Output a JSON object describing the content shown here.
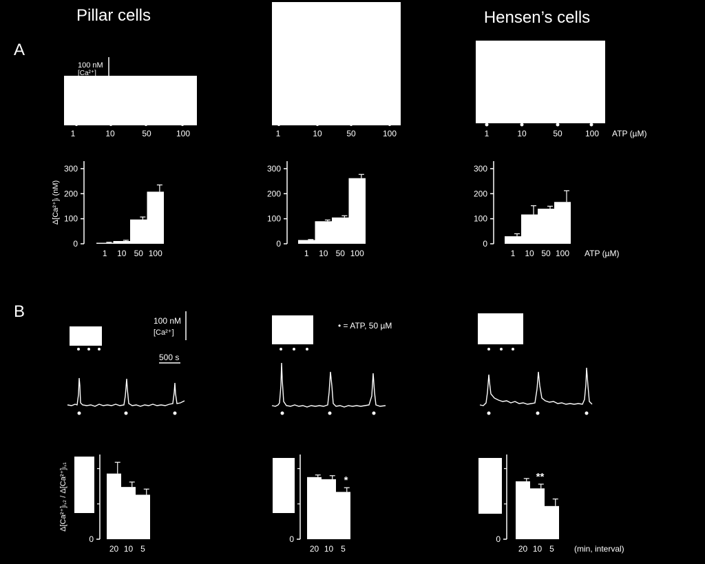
{
  "figure": {
    "headers": [
      "Pillar cells",
      "",
      "Hensen’s cells"
    ],
    "panel_a_label": "A",
    "panel_b_label": "B"
  },
  "colors": {
    "background": "#000000",
    "foreground": "#ffffff"
  },
  "panel_a": {
    "trace_doses": [
      "1",
      "10",
      "50",
      "100"
    ],
    "trace_axis_label": "ATP (µM)",
    "scale_bar": {
      "line1": "100 nM",
      "line2": "[Ca²⁺]"
    }
  },
  "panel_b": {
    "scale_bar": {
      "line1": "100 nM",
      "line2": "[Ca²⁺]",
      "time": "500 s"
    },
    "marker_legend": "• = ATP, 50 µM"
  },
  "chart_data": [
    {
      "type": "bar",
      "panel": "A",
      "group": "Pillar cells",
      "categories": [
        "1",
        "10",
        "50",
        "100"
      ],
      "values": [
        4,
        11,
        97,
        208
      ],
      "errors": [
        2,
        3,
        10,
        27
      ],
      "ylabel": "Δ[Ca²⁺]ᵢ (nM)",
      "xlabel": "",
      "yticks": [
        0,
        100,
        200,
        300
      ],
      "ylim": [
        0,
        330
      ]
    },
    {
      "type": "bar",
      "panel": "A",
      "group": "",
      "categories": [
        "1",
        "10",
        "50",
        "100"
      ],
      "values": [
        15,
        90,
        105,
        262
      ],
      "errors": [
        2,
        5,
        7,
        15
      ],
      "ylabel": "",
      "xlabel": "",
      "yticks": [
        0,
        100,
        200,
        300
      ],
      "ylim": [
        0,
        330
      ]
    },
    {
      "type": "bar",
      "panel": "A",
      "group": "Hensen’s cells",
      "categories": [
        "1",
        "10",
        "50",
        "100"
      ],
      "values": [
        30,
        117,
        140,
        167
      ],
      "errors": [
        10,
        35,
        10,
        45
      ],
      "ylabel": "",
      "xlabel": "ATP (µM)",
      "yticks": [
        0,
        100,
        200,
        300
      ],
      "ylim": [
        0,
        330
      ]
    },
    {
      "type": "bar",
      "panel": "B",
      "group": "Pillar cells",
      "categories": [
        "20",
        "10",
        "5"
      ],
      "values": [
        0.93,
        0.74,
        0.63
      ],
      "errors": [
        0.16,
        0.07,
        0.08
      ],
      "significance": [
        "",
        "",
        ""
      ],
      "ylabel": "Δ[Ca²⁺]ᵢ,₂ / Δ[Ca²⁺]ᵢ,₁",
      "xlabel": "",
      "yticks": [
        0
      ],
      "ylim": [
        0,
        1.2
      ]
    },
    {
      "type": "bar",
      "panel": "B",
      "group": "",
      "categories": [
        "20",
        "10",
        "5"
      ],
      "values": [
        0.88,
        0.85,
        0.67
      ],
      "errors": [
        0.03,
        0.05,
        0.06
      ],
      "significance": [
        "",
        "",
        "*"
      ],
      "ylabel": "",
      "xlabel": "",
      "yticks": [
        0
      ],
      "ylim": [
        0,
        1.2
      ]
    },
    {
      "type": "bar",
      "panel": "B",
      "group": "Hensen’s cells",
      "categories": [
        "20",
        "10",
        "5"
      ],
      "values": [
        0.82,
        0.72,
        0.47
      ],
      "errors": [
        0.04,
        0.06,
        0.1
      ],
      "significance": [
        "",
        "**",
        ""
      ],
      "ylabel": "",
      "xlabel": "(min, interval)",
      "yticks": [
        0
      ],
      "ylim": [
        0,
        1.2
      ]
    }
  ]
}
